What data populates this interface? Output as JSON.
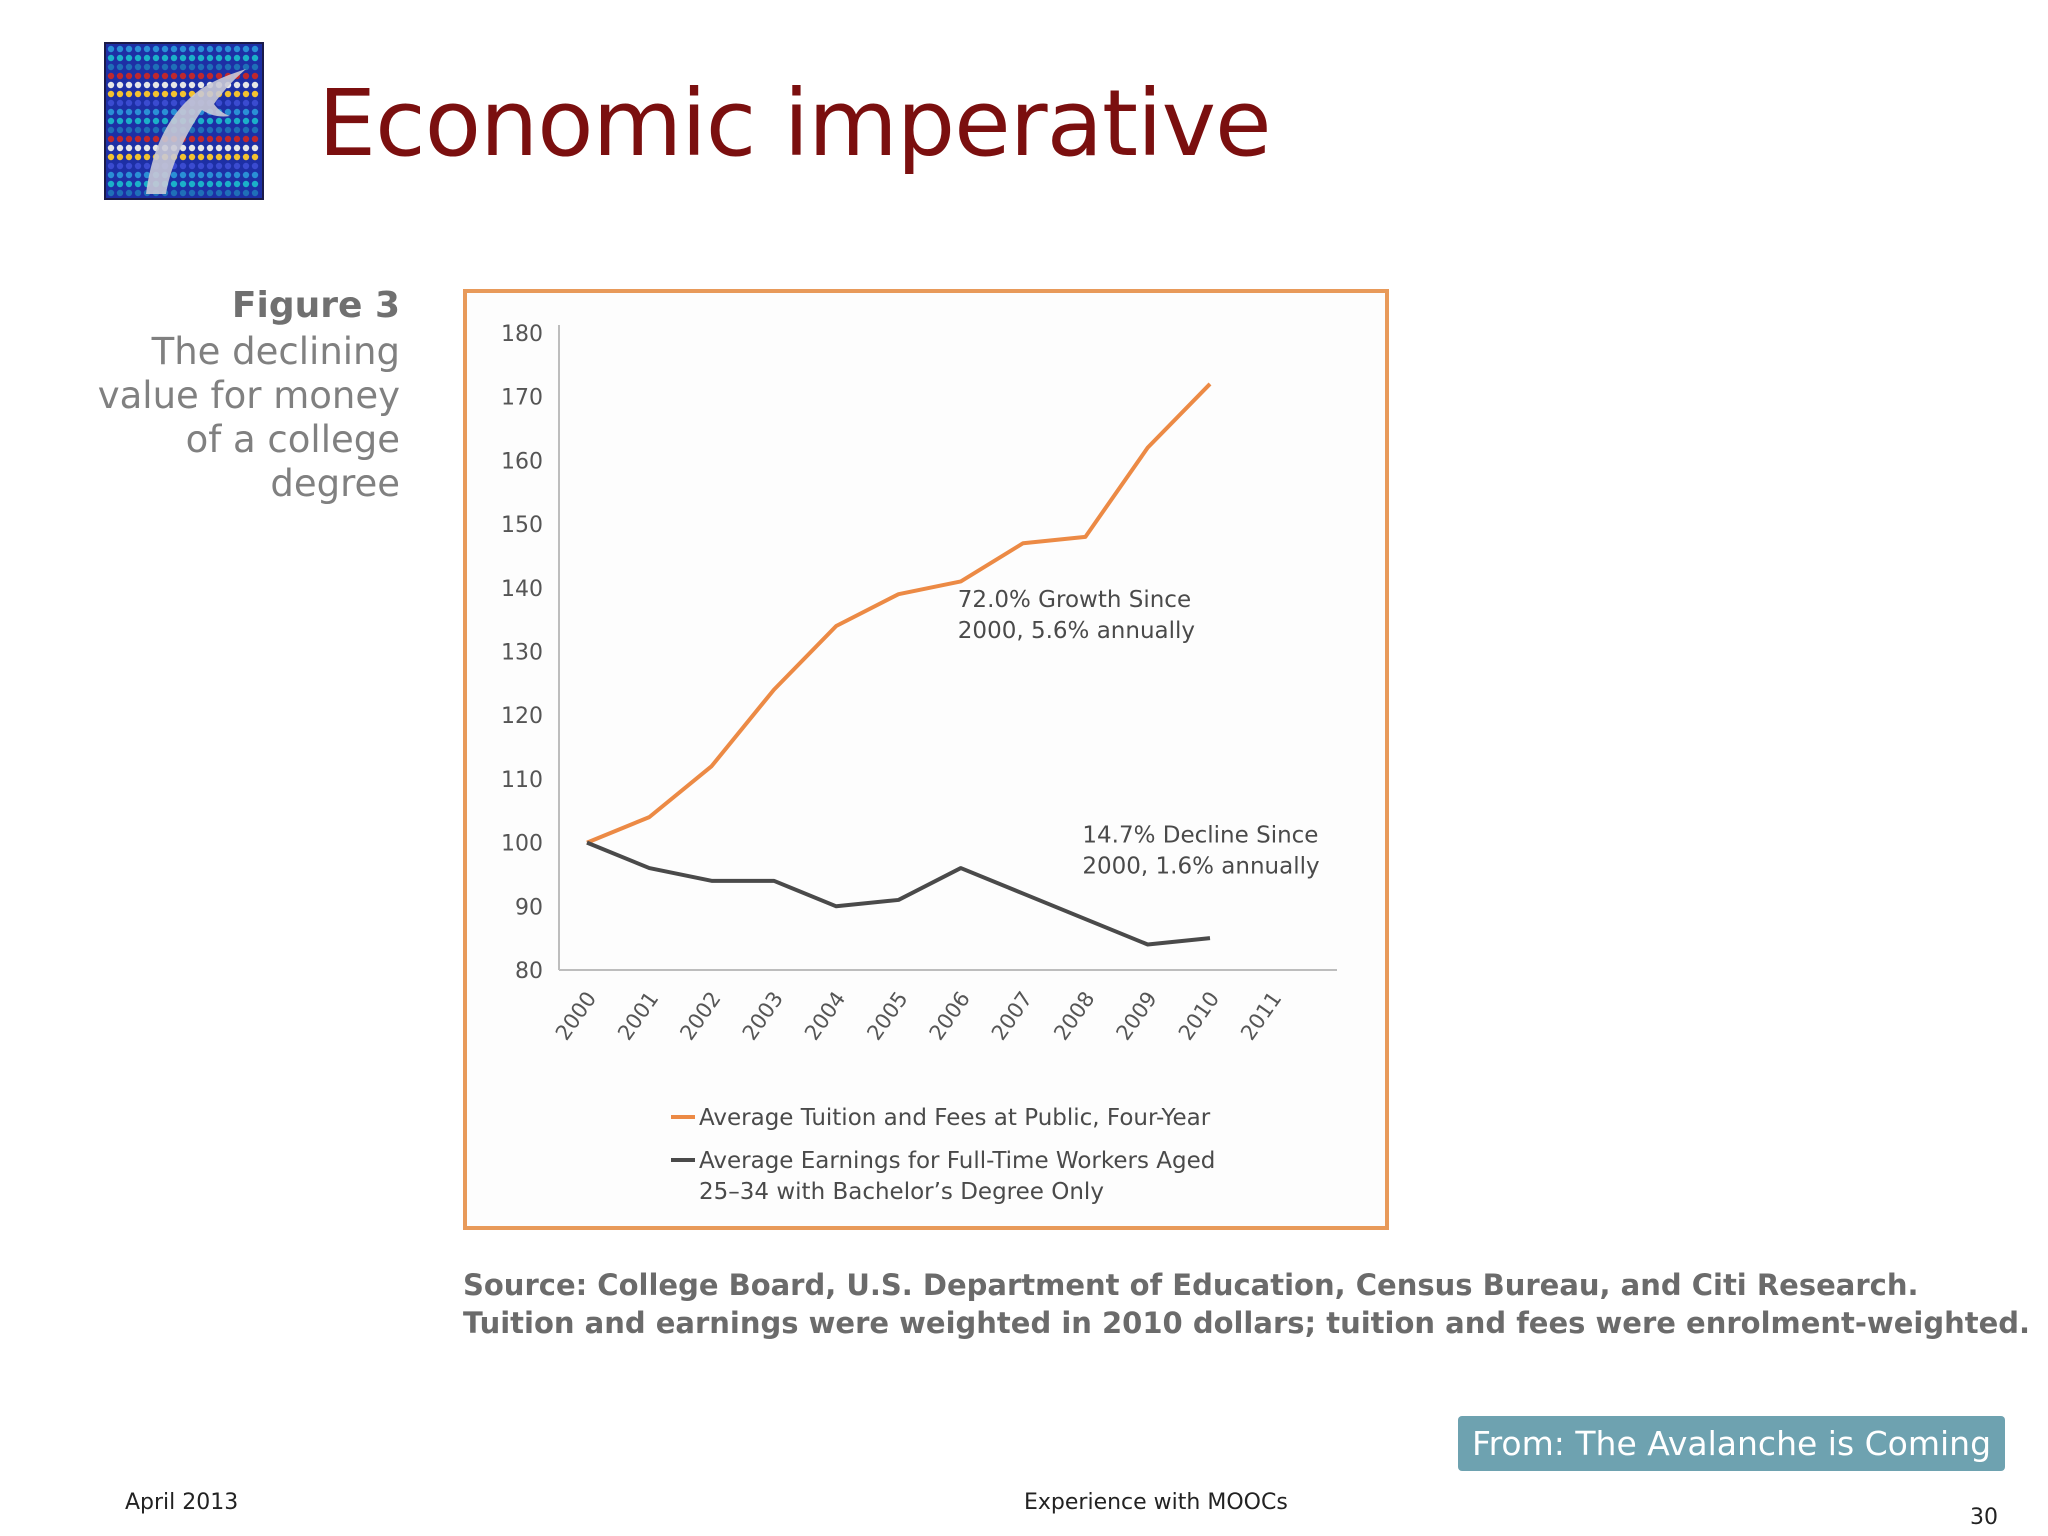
{
  "slide": {
    "title": "Economic imperative",
    "figure_label": "Figure 3",
    "figure_caption_lines": [
      "The declining",
      "value for money",
      "of a college",
      "degree"
    ],
    "source_lines": [
      "Source: College Board, U.S. Department of Education, Census Bureau, and Citi Research.",
      "Tuition and earnings were weighted in 2010 dollars; tuition and fees were enrolment-weighted."
    ],
    "credit": "From: The Avalanche is Coming",
    "footer_left": "April 2013",
    "footer_center": "Experience with MOOCs",
    "page_number": "30"
  },
  "colors": {
    "title": "#7b0f0f",
    "tuition_line": "#ec8a45",
    "earnings_line": "#4a4a4a",
    "chart_border": "#e89a5a",
    "credit_bg": "#6ea2b0"
  },
  "chart_data": {
    "type": "line",
    "title": "",
    "xlabel": "",
    "ylabel": "",
    "categories": [
      "2000",
      "2001",
      "2002",
      "2003",
      "2004",
      "2005",
      "2006",
      "2007",
      "2008",
      "2009",
      "2010",
      "2011"
    ],
    "ylim": [
      80,
      180
    ],
    "yticks": [
      80,
      90,
      100,
      110,
      120,
      130,
      140,
      150,
      160,
      170,
      180
    ],
    "series": [
      {
        "name": "Average Tuition and Fees at Public, Four-Year",
        "color": "#ec8a45",
        "values": [
          100,
          104,
          112,
          124,
          134,
          139,
          141,
          147,
          148,
          162,
          172,
          null
        ]
      },
      {
        "name": "Average Earnings for Full-Time Workers Aged 25–34 with Bachelor’s Degree Only",
        "color": "#4a4a4a",
        "values": [
          100,
          96,
          94,
          94,
          90,
          91,
          96,
          92,
          88,
          84,
          85,
          null
        ]
      }
    ],
    "annotations": [
      {
        "lines": [
          "72.0% Growth Since",
          "2000, 5.6% annually"
        ],
        "year": "2006",
        "value": 137
      },
      {
        "lines": [
          "14.7% Decline Since",
          "2000, 1.6% annually"
        ],
        "year": "2008",
        "value": 100
      }
    ],
    "legend": [
      {
        "lines": [
          "Average Tuition and Fees at Public, Four-Year"
        ],
        "color": "#ec8a45"
      },
      {
        "lines": [
          "Average Earnings for Full-Time Workers Aged",
          "25–34 with Bachelor’s Degree Only"
        ],
        "color": "#4a4a4a"
      }
    ],
    "legend_position": "bottom",
    "grid": false
  }
}
